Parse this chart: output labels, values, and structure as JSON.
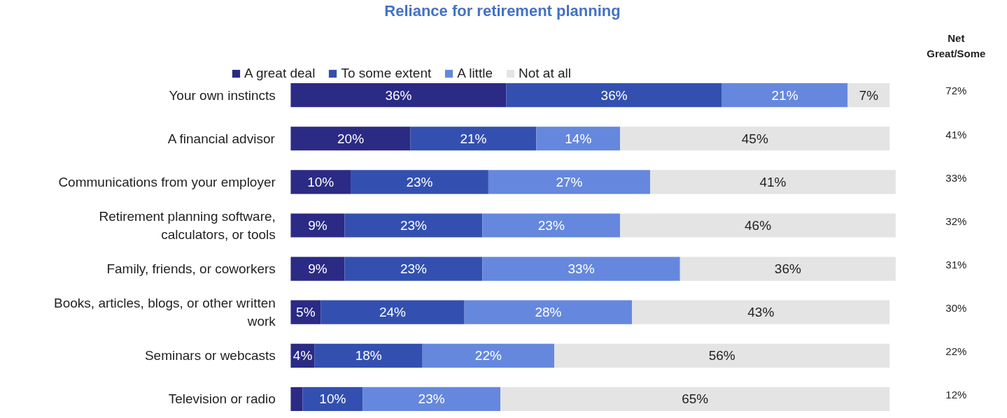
{
  "chart_data": {
    "type": "bar",
    "orientation": "horizontal",
    "stacked": true,
    "title": "Reliance for retirement planning",
    "categories": [
      "Your own instincts",
      "A financial advisor",
      "Communications from your employer",
      "Retirement planning software, calculators, or tools",
      "Family, friends, or coworkers",
      "Books, articles, blogs, or other written work",
      "Seminars or webcasts",
      "Television or radio"
    ],
    "series": [
      {
        "name": "A great deal",
        "color": "#2b2a85",
        "values": [
          36,
          20,
          10,
          9,
          9,
          5,
          4,
          2
        ],
        "value_labels": [
          "36%",
          "20%",
          "10%",
          "9%",
          "9%",
          "5%",
          "4%",
          null
        ]
      },
      {
        "name": "To some extent",
        "color": "#3350b0",
        "values": [
          36,
          21,
          23,
          23,
          23,
          24,
          18,
          10
        ],
        "value_labels": [
          "36%",
          "21%",
          "23%",
          "23%",
          "23%",
          "24%",
          "18%",
          "10%"
        ]
      },
      {
        "name": "A little",
        "color": "#6588de",
        "values": [
          21,
          14,
          27,
          23,
          33,
          28,
          22,
          23
        ],
        "value_labels": [
          "21%",
          "14%",
          "27%",
          "23%",
          "33%",
          "28%",
          "22%",
          "23%"
        ]
      },
      {
        "name": "Not at all",
        "color": "#e4e4e4",
        "values": [
          7,
          45,
          41,
          46,
          36,
          43,
          56,
          65
        ],
        "value_labels": [
          "7%",
          "45%",
          "41%",
          "46%",
          "36%",
          "43%",
          "56%",
          "65%"
        ]
      }
    ],
    "annotations": [
      "Net Great/Some",
      "72%",
      "41%",
      "33%",
      "32%",
      "31%",
      "30%",
      "22%",
      "12%"
    ],
    "legend": "top",
    "grid": false
  }
}
